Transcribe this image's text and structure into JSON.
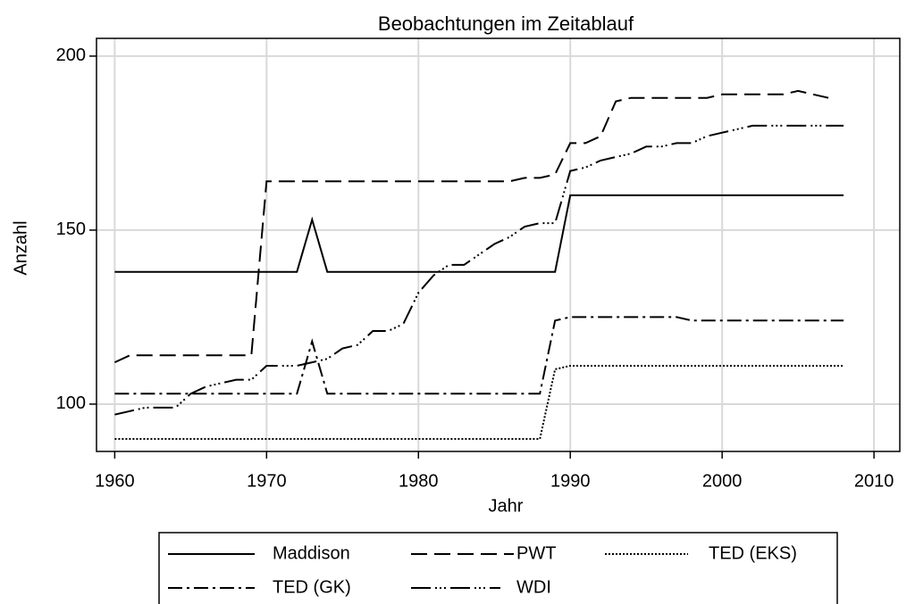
{
  "chart_data": {
    "type": "line",
    "title": "Beobachtungen im Zeitablauf",
    "x_label": "Jahr",
    "y_label": "Anzahl",
    "x": [
      1960,
      1961,
      1962,
      1963,
      1964,
      1965,
      1966,
      1967,
      1968,
      1969,
      1970,
      1971,
      1972,
      1973,
      1974,
      1975,
      1976,
      1977,
      1978,
      1979,
      1980,
      1981,
      1982,
      1983,
      1984,
      1985,
      1986,
      1987,
      1988,
      1989,
      1990,
      1991,
      1992,
      1993,
      1994,
      1995,
      1996,
      1997,
      1998,
      1999,
      2000,
      2001,
      2002,
      2003,
      2004,
      2005,
      2006,
      2007,
      2008
    ],
    "series": [
      {
        "name": "Maddison",
        "color": "#000000",
        "values": [
          138,
          138,
          138,
          138,
          138,
          138,
          138,
          138,
          138,
          138,
          138,
          138,
          138,
          153,
          138,
          138,
          138,
          138,
          138,
          138,
          138,
          138,
          138,
          138,
          138,
          138,
          138,
          138,
          138,
          138,
          160,
          160,
          160,
          160,
          160,
          160,
          160,
          160,
          160,
          160,
          160,
          160,
          160,
          160,
          160,
          160,
          160,
          160,
          160
        ]
      },
      {
        "name": "PWT",
        "color": "#000000",
        "values": [
          112,
          114,
          114,
          114,
          114,
          114,
          114,
          114,
          114,
          114,
          164,
          164,
          164,
          164,
          164,
          164,
          164,
          164,
          164,
          164,
          164,
          164,
          164,
          164,
          164,
          164,
          164,
          165,
          165,
          166,
          175,
          175,
          177,
          187,
          188,
          188,
          188,
          188,
          188,
          188,
          189,
          189,
          189,
          189,
          189,
          190,
          189,
          188,
          null
        ]
      },
      {
        "name": "TED (EKS)",
        "color": "#000000",
        "values": [
          90,
          90,
          90,
          90,
          90,
          90,
          90,
          90,
          90,
          90,
          90,
          90,
          90,
          90,
          90,
          90,
          90,
          90,
          90,
          90,
          90,
          90,
          90,
          90,
          90,
          90,
          90,
          90,
          90,
          110,
          111,
          111,
          111,
          111,
          111,
          111,
          111,
          111,
          111,
          111,
          111,
          111,
          111,
          111,
          111,
          111,
          111,
          111,
          111
        ]
      },
      {
        "name": "TED (GK)",
        "color": "#000000",
        "values": [
          103,
          103,
          103,
          103,
          103,
          103,
          103,
          103,
          103,
          103,
          103,
          103,
          103,
          118,
          103,
          103,
          103,
          103,
          103,
          103,
          103,
          103,
          103,
          103,
          103,
          103,
          103,
          103,
          103,
          124,
          125,
          125,
          125,
          125,
          125,
          125,
          125,
          125,
          124,
          124,
          124,
          124,
          124,
          124,
          124,
          124,
          124,
          124,
          124
        ]
      },
      {
        "name": "WDI",
        "color": "#000000",
        "values": [
          97,
          98,
          99,
          99,
          99,
          103,
          105,
          106,
          107,
          107,
          111,
          111,
          111,
          112,
          113,
          116,
          117,
          121,
          121,
          123,
          132,
          137,
          140,
          140,
          143,
          146,
          148,
          151,
          152,
          152,
          167,
          168,
          170,
          171,
          172,
          174,
          174,
          175,
          175,
          177,
          178,
          179,
          180,
          180,
          180,
          180,
          180,
          180,
          180
        ]
      }
    ],
    "xlim": [
      1958.8,
      2011.7
    ],
    "xticks": [
      1960,
      1970,
      1980,
      1990,
      2000,
      2010
    ],
    "ylim": [
      86.4,
      205.1
    ],
    "yticks": [
      100,
      150,
      200
    ],
    "grid": true
  }
}
